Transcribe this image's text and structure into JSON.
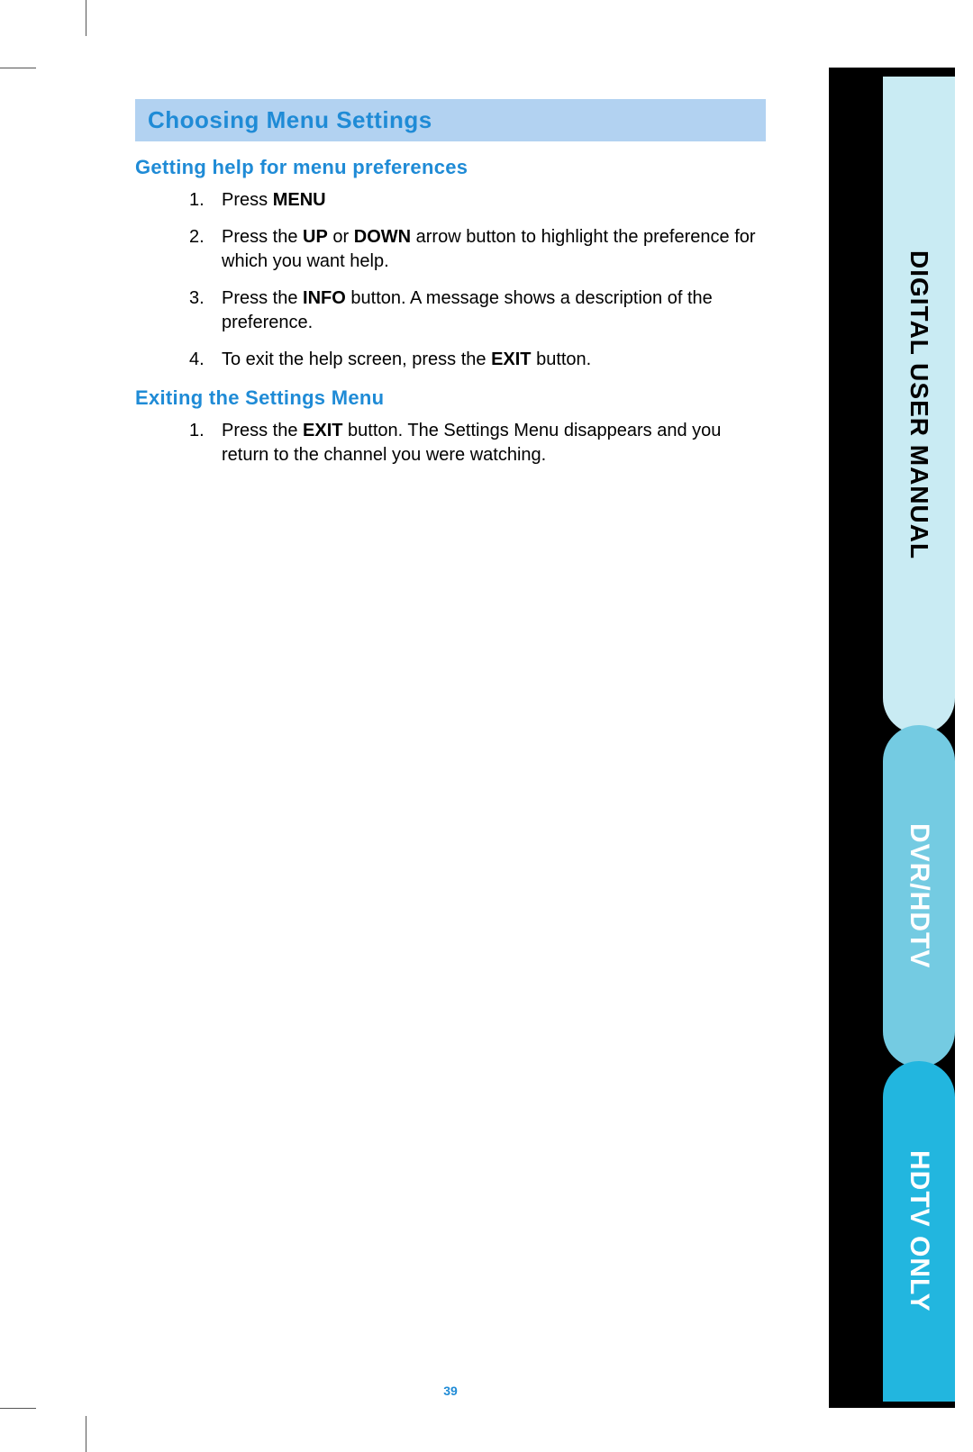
{
  "colors": {
    "banner_bg": "#b2d2f1",
    "accent_blue": "#1f8bd6",
    "tab1_bg": "#c9ebf3",
    "tab2_bg": "#74cbe2",
    "tab3_bg": "#22b6df",
    "black": "#000000",
    "white": "#ffffff"
  },
  "sidebar": {
    "tab1": "DIGITAL USER MANUAL",
    "tab2": "DVR/HDTV",
    "tab3": "HDTV ONLY"
  },
  "banner": "Choosing Menu Settings",
  "section1": {
    "heading": "Getting help for menu preferences",
    "items": {
      "i1_a": "Press ",
      "i1_b": "MENU",
      "i2_a": "Press the ",
      "i2_b": "UP",
      "i2_c": " or ",
      "i2_d": "DOWN",
      "i2_e": " arrow button to highlight the preference for which you want help.",
      "i3_a": "Press the ",
      "i3_b": "INFO",
      "i3_c": " button. A message shows a description of the preference.",
      "i4_a": "To exit the help screen, press the ",
      "i4_b": "EXIT",
      "i4_c": " button."
    }
  },
  "section2": {
    "heading": "Exiting the Settings Menu",
    "items": {
      "i1_a": "Press the ",
      "i1_b": "EXIT",
      "i1_c": " button. The Settings Menu disappears and you return to the channel you were watching."
    }
  },
  "page_number": "39",
  "typography": {
    "banner_fontsize": 26,
    "subhead_fontsize": 22,
    "body_fontsize": 20,
    "tab_fontsize": 30,
    "pagenum_fontsize": 14
  }
}
